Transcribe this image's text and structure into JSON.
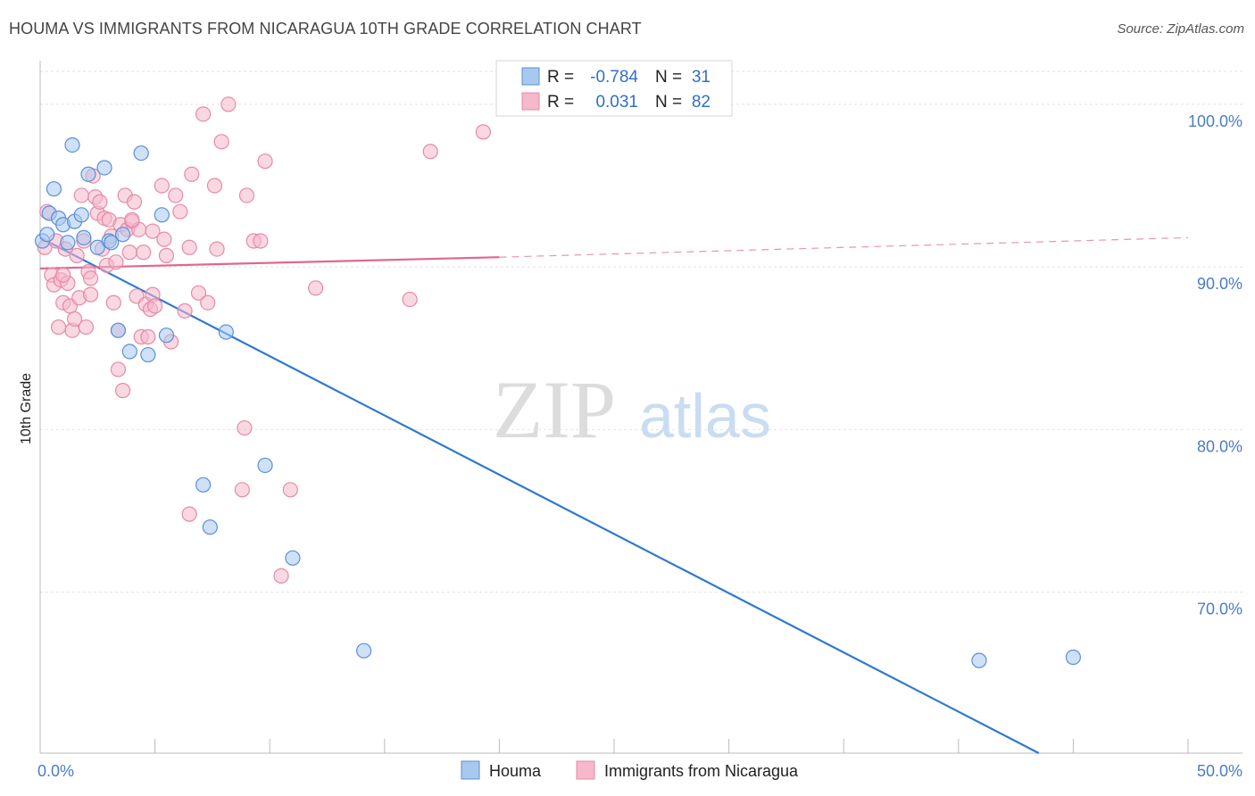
{
  "header": {
    "title": "HOUMA VS IMMIGRANTS FROM NICARAGUA 10TH GRADE CORRELATION CHART",
    "source": "Source: ZipAtlas.com"
  },
  "watermark": {
    "zip": "ZIP",
    "atlas": "atlas"
  },
  "colors": {
    "houma_fill": "#a8c8f0",
    "houma_stroke": "#5a8fd6",
    "houma_line": "#2f78d4",
    "nic_fill": "#f6b8cb",
    "nic_stroke": "#e58aa6",
    "nic_line": "#e0678f",
    "tick_label": "#4a7cc7",
    "grid": "#e2e2e2"
  },
  "chart_data": {
    "type": "scatter",
    "title": "HOUMA VS IMMIGRANTS FROM NICARAGUA 10TH GRADE CORRELATION CHART",
    "xlabel": "",
    "ylabel": "10th Grade",
    "xlim": [
      0,
      50
    ],
    "ylim": [
      60.1,
      102.3
    ],
    "x_tick_labels": [
      "0.0%",
      "50.0%"
    ],
    "y_ticks": [
      70,
      80,
      90,
      100
    ],
    "y_tick_labels": [
      "70.0%",
      "80.0%",
      "90.0%",
      "100.0%"
    ],
    "legend_top": [
      {
        "r_label": "R =",
        "r_value": "-0.784",
        "n_label": "N =",
        "n_value": "31"
      },
      {
        "r_label": "R =",
        "r_value": "0.031",
        "n_label": "N =",
        "n_value": "82"
      }
    ],
    "legend_bottom": [
      "Houma",
      "Immigrants from Nicaragua"
    ],
    "series": [
      {
        "name": "Houma",
        "trend": {
          "x": [
            0,
            43.5
          ],
          "y": [
            91.8,
            60.1
          ],
          "style": "solid"
        },
        "points": [
          [
            0.1,
            91.6
          ],
          [
            0.4,
            93.3
          ],
          [
            0.6,
            94.8
          ],
          [
            0.8,
            93.0
          ],
          [
            1.0,
            92.6
          ],
          [
            1.2,
            91.5
          ],
          [
            1.4,
            97.5
          ],
          [
            1.5,
            92.8
          ],
          [
            1.8,
            93.2
          ],
          [
            1.9,
            91.8
          ],
          [
            2.1,
            95.7
          ],
          [
            2.5,
            91.2
          ],
          [
            2.8,
            96.1
          ],
          [
            3.0,
            91.6
          ],
          [
            3.1,
            91.5
          ],
          [
            3.6,
            92.0
          ],
          [
            3.4,
            86.1
          ],
          [
            3.9,
            84.8
          ],
          [
            4.4,
            97.0
          ],
          [
            4.7,
            84.6
          ],
          [
            5.3,
            93.2
          ],
          [
            5.5,
            85.8
          ],
          [
            7.1,
            76.6
          ],
          [
            7.4,
            74.0
          ],
          [
            8.1,
            86.0
          ],
          [
            9.8,
            77.8
          ],
          [
            11.0,
            72.1
          ],
          [
            14.1,
            66.4
          ],
          [
            40.9,
            65.8
          ],
          [
            45.0,
            66.0
          ],
          [
            0.3,
            92.0
          ]
        ]
      },
      {
        "name": "Immigrants from Nicaragua",
        "trend": {
          "x": [
            0,
            20
          ],
          "y": [
            89.9,
            90.6
          ],
          "style": "solid",
          "dashed_x": [
            20,
            50
          ],
          "dashed_y": [
            90.6,
            91.8
          ]
        },
        "points": [
          [
            0.2,
            91.2
          ],
          [
            0.3,
            93.4
          ],
          [
            0.5,
            89.5
          ],
          [
            0.6,
            88.9
          ],
          [
            0.7,
            91.6
          ],
          [
            0.8,
            86.3
          ],
          [
            0.9,
            89.2
          ],
          [
            1.0,
            87.8
          ],
          [
            1.1,
            91.1
          ],
          [
            1.2,
            89.0
          ],
          [
            1.3,
            87.6
          ],
          [
            1.4,
            86.1
          ],
          [
            1.5,
            86.8
          ],
          [
            1.6,
            90.7
          ],
          [
            1.7,
            88.1
          ],
          [
            1.8,
            94.4
          ],
          [
            1.9,
            91.6
          ],
          [
            2.0,
            86.3
          ],
          [
            2.1,
            89.7
          ],
          [
            2.2,
            88.3
          ],
          [
            2.3,
            95.6
          ],
          [
            2.4,
            94.3
          ],
          [
            2.5,
            93.3
          ],
          [
            2.6,
            94.0
          ],
          [
            2.7,
            91.1
          ],
          [
            2.8,
            93.0
          ],
          [
            2.9,
            90.1
          ],
          [
            3.0,
            92.9
          ],
          [
            3.1,
            91.9
          ],
          [
            3.2,
            87.8
          ],
          [
            3.3,
            90.3
          ],
          [
            3.4,
            83.7
          ],
          [
            3.5,
            92.6
          ],
          [
            3.6,
            82.4
          ],
          [
            3.7,
            94.4
          ],
          [
            3.8,
            92.3
          ],
          [
            3.9,
            90.9
          ],
          [
            4.0,
            92.8
          ],
          [
            4.1,
            94.0
          ],
          [
            4.2,
            88.2
          ],
          [
            4.3,
            92.3
          ],
          [
            4.4,
            85.7
          ],
          [
            4.5,
            90.9
          ],
          [
            4.6,
            87.7
          ],
          [
            4.7,
            85.7
          ],
          [
            4.8,
            87.4
          ],
          [
            4.9,
            88.3
          ],
          [
            5.0,
            87.6
          ],
          [
            5.3,
            95.0
          ],
          [
            5.5,
            90.7
          ],
          [
            5.7,
            85.4
          ],
          [
            5.9,
            94.4
          ],
          [
            6.1,
            93.4
          ],
          [
            6.3,
            87.3
          ],
          [
            6.5,
            91.2
          ],
          [
            6.6,
            95.7
          ],
          [
            6.9,
            88.4
          ],
          [
            7.1,
            99.4
          ],
          [
            7.3,
            87.8
          ],
          [
            7.6,
            95.0
          ],
          [
            7.7,
            91.1
          ],
          [
            7.9,
            97.7
          ],
          [
            8.2,
            100.0
          ],
          [
            9.0,
            94.4
          ],
          [
            9.3,
            91.6
          ],
          [
            9.6,
            91.6
          ],
          [
            8.9,
            80.1
          ],
          [
            8.8,
            76.3
          ],
          [
            6.5,
            74.8
          ],
          [
            10.9,
            76.3
          ],
          [
            10.5,
            71.0
          ],
          [
            12.0,
            88.7
          ],
          [
            16.1,
            88.0
          ],
          [
            17.0,
            97.1
          ],
          [
            19.3,
            98.3
          ],
          [
            9.8,
            96.5
          ],
          [
            4.9,
            92.2
          ],
          [
            4.0,
            92.9
          ],
          [
            3.4,
            86.1
          ],
          [
            2.2,
            89.3
          ],
          [
            5.4,
            91.7
          ],
          [
            1.0,
            89.5
          ]
        ]
      }
    ]
  }
}
